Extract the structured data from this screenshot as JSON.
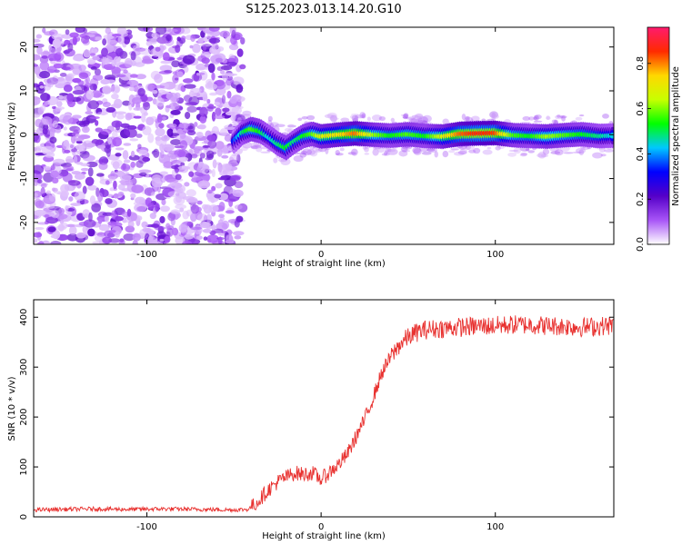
{
  "title": "S125.2023.013.14.20.G10",
  "colors": {
    "snr_line": "#e8312f",
    "colorbar_stops": [
      "#ffffff",
      "#a855f7",
      "#5500c8",
      "#0000ff",
      "#00c8ff",
      "#00ff00",
      "#c8ff00",
      "#ffd700",
      "#ff2a00",
      "#ff1a6e"
    ]
  },
  "chart_data": [
    {
      "type": "heatmap",
      "xlabel": "Height of straight line (km)",
      "ylabel": "Frequency (Hz)",
      "xlim": [
        -165,
        168
      ],
      "ylim": [
        -25,
        24.5
      ],
      "xticks": [
        -100,
        0,
        100
      ],
      "yticks": [
        -20,
        -10,
        0,
        10,
        20
      ],
      "xtick_labels": [
        "-100",
        "0",
        "100"
      ],
      "ytick_labels": [
        "-20",
        "-10",
        "0",
        "10",
        "20"
      ],
      "colorbar": {
        "label": "Normalized spectral amplitude",
        "range": [
          0,
          0.96
        ],
        "ticks": [
          0.0,
          0.2,
          0.4,
          0.6,
          0.8
        ],
        "tick_labels": [
          "0.0",
          "0.2",
          "0.4",
          "0.6",
          "0.8"
        ]
      },
      "noise_region_x": [
        -165,
        -50
      ],
      "ridge": {
        "x": [
          -50,
          -45,
          -40,
          -35,
          -30,
          -25,
          -20,
          -15,
          -10,
          -5,
          0,
          10,
          20,
          30,
          40,
          50,
          60,
          70,
          80,
          90,
          100,
          110,
          120,
          130,
          140,
          150,
          160,
          168
        ],
        "y": [
          -1.5,
          0.5,
          1.3,
          0.8,
          -0.5,
          -2.0,
          -3.0,
          -1.5,
          -0.3,
          0.2,
          -0.4,
          0.0,
          0.3,
          0.0,
          -0.2,
          0.1,
          -0.3,
          -0.4,
          0.2,
          0.3,
          0.4,
          -0.1,
          -0.3,
          -0.4,
          -0.1,
          0.1,
          -0.3,
          -0.2
        ],
        "amplitude": [
          0.35,
          0.5,
          0.6,
          0.55,
          0.45,
          0.5,
          0.55,
          0.5,
          0.55,
          0.6,
          0.7,
          0.75,
          0.85,
          0.65,
          0.55,
          0.6,
          0.55,
          0.7,
          0.85,
          0.9,
          0.88,
          0.6,
          0.55,
          0.65,
          0.6,
          0.55,
          0.5,
          0.45
        ]
      }
    },
    {
      "type": "line",
      "xlabel": "Height of straight line (km)",
      "ylabel": "SNR (10 * v/v)",
      "xlim": [
        -165,
        168
      ],
      "ylim": [
        0,
        435
      ],
      "xticks": [
        -100,
        0,
        100
      ],
      "yticks": [
        0,
        100,
        200,
        300,
        400
      ],
      "xtick_labels": [
        "-100",
        "0",
        "100"
      ],
      "ytick_labels": [
        "0",
        "100",
        "200",
        "300",
        "400"
      ],
      "series": [
        {
          "x": [
            -165,
            -150,
            -130,
            -110,
            -90,
            -70,
            -50,
            -42,
            -38,
            -34,
            -30,
            -25,
            -20,
            -15,
            -10,
            -5,
            0,
            5,
            10,
            15,
            20,
            25,
            30,
            35,
            40,
            45,
            50,
            55,
            60,
            70,
            80,
            90,
            100,
            110,
            120,
            130,
            140,
            150,
            160,
            168
          ],
          "y": [
            14,
            15,
            16,
            15,
            16,
            15,
            14,
            15,
            25,
            40,
            55,
            70,
            80,
            88,
            85,
            88,
            75,
            90,
            105,
            125,
            160,
            195,
            240,
            290,
            320,
            345,
            360,
            370,
            375,
            378,
            380,
            382,
            383,
            385,
            385,
            383,
            382,
            380,
            382,
            384
          ]
        }
      ]
    }
  ]
}
